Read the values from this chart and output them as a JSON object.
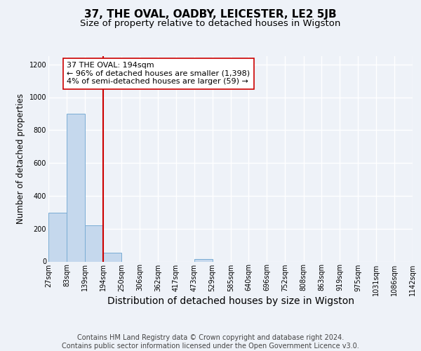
{
  "title": "37, THE OVAL, OADBY, LEICESTER, LE2 5JB",
  "subtitle": "Size of property relative to detached houses in Wigston",
  "xlabel": "Distribution of detached houses by size in Wigston",
  "ylabel": "Number of detached properties",
  "bin_edges": [
    27,
    83,
    139,
    194,
    250,
    306,
    362,
    417,
    473,
    529,
    585,
    640,
    696,
    752,
    808,
    863,
    919,
    975,
    1031,
    1086,
    1142
  ],
  "bar_heights": [
    295,
    900,
    220,
    55,
    0,
    0,
    0,
    0,
    15,
    0,
    0,
    0,
    0,
    0,
    0,
    0,
    0,
    0,
    0,
    0
  ],
  "bar_color": "#c5d8ed",
  "bar_edge_color": "#7aadd4",
  "vline_x": 194,
  "vline_color": "#cc0000",
  "annotation_text": "37 THE OVAL: 194sqm\n← 96% of detached houses are smaller (1,398)\n4% of semi-detached houses are larger (59) →",
  "annotation_box_color": "#ffffff",
  "annotation_box_edge_color": "#cc0000",
  "ylim": [
    0,
    1250
  ],
  "yticks": [
    0,
    200,
    400,
    600,
    800,
    1000,
    1200
  ],
  "tick_labels": [
    "27sqm",
    "83sqm",
    "139sqm",
    "194sqm",
    "250sqm",
    "306sqm",
    "362sqm",
    "417sqm",
    "473sqm",
    "529sqm",
    "585sqm",
    "640sqm",
    "696sqm",
    "752sqm",
    "808sqm",
    "863sqm",
    "919sqm",
    "975sqm",
    "1031sqm",
    "1086sqm",
    "1142sqm"
  ],
  "footer_text": "Contains HM Land Registry data © Crown copyright and database right 2024.\nContains public sector information licensed under the Open Government Licence v3.0.",
  "background_color": "#eef2f8",
  "grid_color": "#ffffff",
  "title_fontsize": 11,
  "subtitle_fontsize": 9.5,
  "xlabel_fontsize": 10,
  "ylabel_fontsize": 8.5,
  "tick_fontsize": 7,
  "footer_fontsize": 7,
  "annotation_fontsize": 8
}
